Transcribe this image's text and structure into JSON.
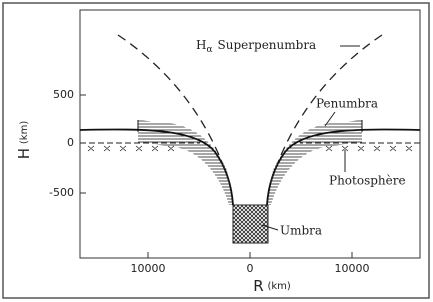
{
  "axes": {
    "y_title": "H",
    "y_unit": "(km)",
    "y_ticks": [
      "500",
      "0",
      "-500"
    ],
    "x_title": "R",
    "x_unit": "(km)",
    "x_ticks": [
      "10000",
      "0",
      "10000"
    ]
  },
  "labels": {
    "superpenumbra": {
      "symbol": "H",
      "subscript": "α",
      "text": "Superpenumbra"
    },
    "penumbra": "Penumbra",
    "photosphere": "Photosphère",
    "umbra": "Umbra"
  }
}
